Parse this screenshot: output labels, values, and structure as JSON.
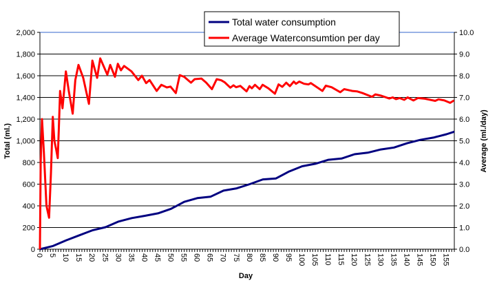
{
  "chart_data": {
    "type": "line",
    "xlabel": "Day",
    "ylabel_left": "Total (ml.)",
    "ylabel_right": "Average (ml./day)",
    "xlim": [
      0,
      158
    ],
    "ylim_left": [
      0,
      2000
    ],
    "ylim_right": [
      0,
      10
    ],
    "x_tick_labels": [
      "0",
      "5",
      "10",
      "15",
      "20",
      "25",
      "30",
      "35",
      "40",
      "45",
      "50",
      "55",
      "60",
      "65",
      "70",
      "75",
      "80",
      "85",
      "90",
      "95",
      "100",
      "105",
      "110",
      "115",
      "120",
      "125",
      "130",
      "135",
      "140",
      "145",
      "150",
      "155"
    ],
    "y_left_tick_labels": [
      "0",
      "200",
      "400",
      "600",
      "800",
      "1,000",
      "1,200",
      "1,400",
      "1,600",
      "1,800",
      "2,000"
    ],
    "y_right_tick_labels": [
      "0.0",
      "1.0",
      "2.0",
      "3.0",
      "4.0",
      "5.0",
      "6.0",
      "7.0",
      "8.0",
      "9.0",
      "10.0"
    ],
    "grid": true,
    "legend_position": "top",
    "series": [
      {
        "name": "Total water consumption",
        "axis": "left",
        "color": "#000080",
        "points": [
          [
            0,
            0
          ],
          [
            5,
            30
          ],
          [
            10,
            82
          ],
          [
            15,
            128
          ],
          [
            20,
            174
          ],
          [
            25,
            203
          ],
          [
            30,
            255
          ],
          [
            35,
            287
          ],
          [
            40,
            308
          ],
          [
            45,
            331
          ],
          [
            50,
            373
          ],
          [
            55,
            437
          ],
          [
            60,
            471
          ],
          [
            65,
            484
          ],
          [
            70,
            540
          ],
          [
            75,
            561
          ],
          [
            80,
            600
          ],
          [
            85,
            644
          ],
          [
            90,
            653
          ],
          [
            95,
            717
          ],
          [
            100,
            765
          ],
          [
            105,
            788
          ],
          [
            110,
            825
          ],
          [
            115,
            836
          ],
          [
            120,
            876
          ],
          [
            125,
            890
          ],
          [
            130,
            920
          ],
          [
            135,
            938
          ],
          [
            140,
            977
          ],
          [
            145,
            1008
          ],
          [
            150,
            1029
          ],
          [
            155,
            1060
          ],
          [
            158,
            1084
          ]
        ]
      },
      {
        "name": "Average Waterconsumtion per day",
        "axis": "right",
        "color": "#ff0000",
        "points": [
          [
            0,
            0
          ],
          [
            0.3,
            4
          ],
          [
            0.8,
            6.0
          ],
          [
            1.5,
            4.5
          ],
          [
            2.5,
            2.0
          ],
          [
            3.5,
            1.45
          ],
          [
            4.2,
            3.5
          ],
          [
            4.9,
            6.1
          ],
          [
            5.5,
            5.0
          ],
          [
            6.2,
            4.6
          ],
          [
            6.8,
            4.2
          ],
          [
            7.2,
            5.5
          ],
          [
            7.7,
            7.3
          ],
          [
            8.6,
            6.5
          ],
          [
            9.9,
            8.2
          ],
          [
            11,
            7.3
          ],
          [
            12.5,
            6.25
          ],
          [
            13.5,
            7.8
          ],
          [
            14.7,
            8.5
          ],
          [
            16.5,
            7.9
          ],
          [
            18.7,
            6.7
          ],
          [
            20,
            8.7
          ],
          [
            21.8,
            7.9
          ],
          [
            23,
            8.8
          ],
          [
            25.7,
            8.05
          ],
          [
            26.8,
            8.5
          ],
          [
            28.6,
            7.95
          ],
          [
            29.7,
            8.55
          ],
          [
            30.9,
            8.25
          ],
          [
            32.1,
            8.45
          ],
          [
            34.9,
            8.2
          ],
          [
            37.5,
            7.8
          ],
          [
            38.9,
            8.0
          ],
          [
            40.5,
            7.66
          ],
          [
            41.8,
            7.8
          ],
          [
            44.5,
            7.3
          ],
          [
            46.3,
            7.58
          ],
          [
            48.4,
            7.46
          ],
          [
            49.8,
            7.5
          ],
          [
            51.8,
            7.2
          ],
          [
            53.3,
            8.03
          ],
          [
            55,
            7.95
          ],
          [
            57.6,
            7.68
          ],
          [
            59,
            7.84
          ],
          [
            61.6,
            7.87
          ],
          [
            63.4,
            7.68
          ],
          [
            65.6,
            7.38
          ],
          [
            67.4,
            7.84
          ],
          [
            69.1,
            7.79
          ],
          [
            70.4,
            7.7
          ],
          [
            72.6,
            7.45
          ],
          [
            73.8,
            7.56
          ],
          [
            74.8,
            7.47
          ],
          [
            76.4,
            7.53
          ],
          [
            78.8,
            7.28
          ],
          [
            79.9,
            7.52
          ],
          [
            80.8,
            7.42
          ],
          [
            82,
            7.58
          ],
          [
            83.8,
            7.38
          ],
          [
            84.9,
            7.58
          ],
          [
            87.1,
            7.42
          ],
          [
            89.6,
            7.17
          ],
          [
            91,
            7.6
          ],
          [
            92.4,
            7.49
          ],
          [
            93.9,
            7.68
          ],
          [
            95.3,
            7.52
          ],
          [
            96.8,
            7.73
          ],
          [
            97.6,
            7.63
          ],
          [
            98.9,
            7.73
          ],
          [
            100.7,
            7.63
          ],
          [
            102.4,
            7.6
          ],
          [
            103.3,
            7.66
          ],
          [
            107.7,
            7.3
          ],
          [
            109,
            7.54
          ],
          [
            111.2,
            7.47
          ],
          [
            114.5,
            7.24
          ],
          [
            116,
            7.38
          ],
          [
            119.1,
            7.3
          ],
          [
            120.9,
            7.28
          ],
          [
            123,
            7.2
          ],
          [
            126.6,
            7.03
          ],
          [
            127.9,
            7.14
          ],
          [
            130.1,
            7.08
          ],
          [
            133.2,
            6.95
          ],
          [
            134.5,
            7.0
          ],
          [
            135.8,
            6.92
          ],
          [
            137.1,
            6.97
          ],
          [
            138.9,
            6.89
          ],
          [
            140.2,
            7.0
          ],
          [
            142.4,
            6.86
          ],
          [
            144.1,
            6.97
          ],
          [
            146.8,
            6.94
          ],
          [
            150.7,
            6.84
          ],
          [
            152,
            6.91
          ],
          [
            154.2,
            6.86
          ],
          [
            156.4,
            6.75
          ],
          [
            157.9,
            6.86
          ]
        ]
      }
    ]
  }
}
